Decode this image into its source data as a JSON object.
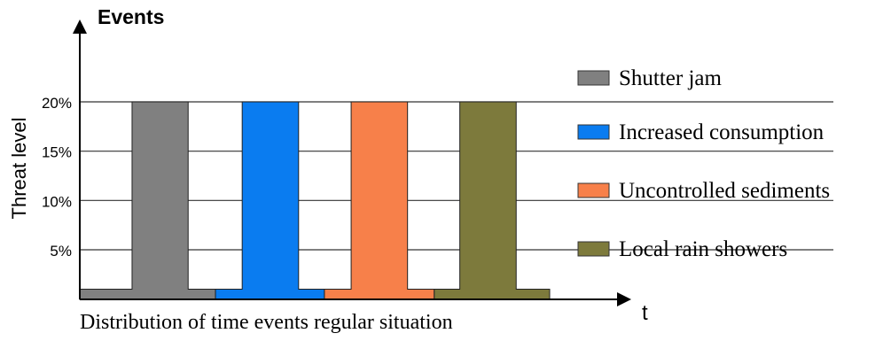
{
  "chart_data": {
    "type": "area",
    "title": "Events",
    "ylabel": "Threat level",
    "xlabel": "t",
    "caption": "Distribution of time events regular situation",
    "ytick_labels": [
      "5%",
      "10%",
      "15%",
      "20%"
    ],
    "ytick_values": [
      5,
      10,
      15,
      20
    ],
    "ylim": [
      0,
      20
    ],
    "grid": true,
    "legend_position": "right",
    "baseline_level": 1,
    "peak_level": 20,
    "series": [
      {
        "name": "Shutter jam",
        "color": "#808080",
        "segments": [
          {
            "lo": 0,
            "rise": 0.178,
            "fall": 0.369,
            "hi": 0.462
          }
        ]
      },
      {
        "name": "Increased consumption",
        "color": "#0a7cf0",
        "segments": [
          {
            "lo": 0.462,
            "rise": 0.553,
            "fall": 0.745,
            "hi": 0.833
          }
        ]
      },
      {
        "name": "Uncontrolled sediments",
        "color": "#f7804a",
        "segments": [
          {
            "lo": 0.833,
            "rise": 0.924,
            "fall": 1.116,
            "hi": 1.207
          }
        ]
      },
      {
        "name": "Local rain showers",
        "color": "#7d7a3c",
        "segments": [
          {
            "lo": 1.207,
            "rise": 1.294,
            "fall": 1.486,
            "hi": 1.6
          }
        ]
      }
    ]
  }
}
